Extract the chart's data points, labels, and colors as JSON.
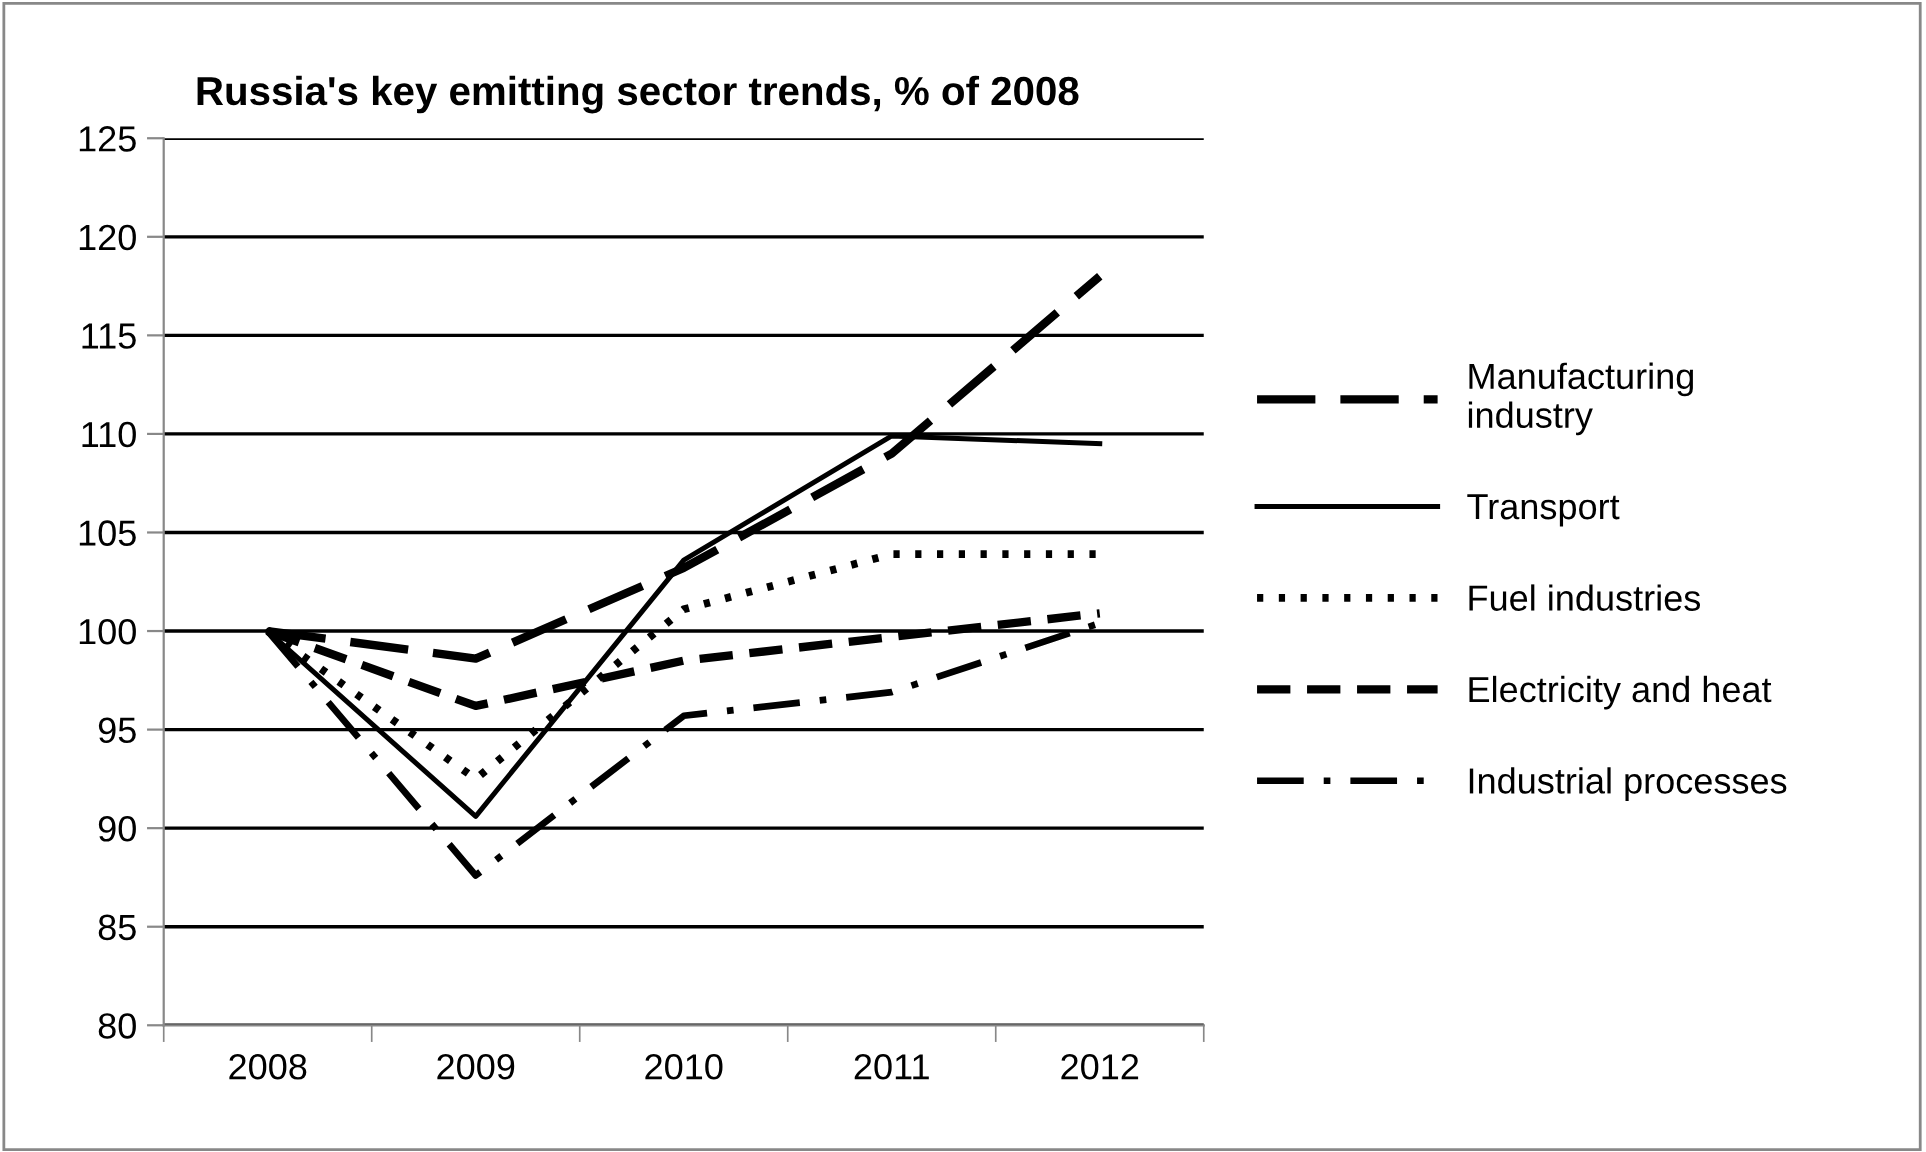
{
  "chart_data": {
    "type": "line",
    "title": "Russia's key emitting sector trends, % of 2008",
    "categories": [
      "2008",
      "2009",
      "2010",
      "2011",
      "2012"
    ],
    "series": [
      {
        "name": "Manufacturing industry",
        "color": "#000000",
        "line_style": "longdash",
        "values": [
          100,
          98.6,
          103.2,
          109.0,
          118.0
        ]
      },
      {
        "name": "Transport",
        "color": "#000000",
        "line_style": "solid",
        "values": [
          100,
          90.6,
          103.6,
          109.9,
          109.5
        ]
      },
      {
        "name": "Fuel industries",
        "color": "#000000",
        "line_style": "dotted",
        "values": [
          100,
          92.5,
          101.1,
          103.9,
          103.9
        ]
      },
      {
        "name": "Electricity and heat",
        "color": "#000000",
        "line_style": "dashed",
        "values": [
          100,
          96.2,
          98.5,
          99.7,
          100.9
        ]
      },
      {
        "name": "Industrial processes",
        "color": "#000000",
        "line_style": "dashdot",
        "values": [
          100,
          87.6,
          95.7,
          96.9,
          100.4
        ]
      }
    ],
    "ylim": [
      80,
      125
    ],
    "yticks": [
      80,
      85,
      90,
      95,
      100,
      105,
      110,
      115,
      120,
      125
    ],
    "grid": "y",
    "legend": "right",
    "marker": "none"
  }
}
